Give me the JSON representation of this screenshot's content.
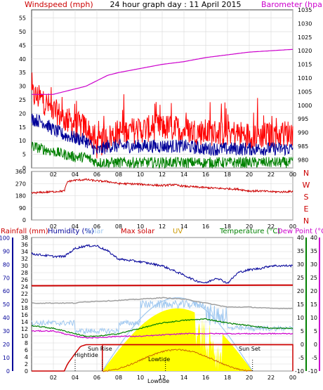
{
  "titles": {
    "top_left": "Windspeed (mph)",
    "top_center": "24 hour graph day : 11 April 2015",
    "top_right": "Barometer (hpa)",
    "bottom_rainfall": "Rainfall (mm)",
    "bottom_humidity": "Humidity (%)",
    "bottom_solar": "Solar",
    "bottom_maxsolar": "Max solar",
    "bottom_uv": "UV",
    "bottom_temperature": "Temperature (°C)",
    "bottom_dewpoint": "Dew Point (°C)"
  },
  "annotations": {
    "hightide": "Hightide",
    "lowtide": "Lowtide",
    "lowtide2": "Lowtide",
    "sunrise": "Sun Rise",
    "sunset": "Sun Set"
  },
  "compass_labels": [
    "N",
    "W",
    "S",
    "E",
    "N"
  ],
  "colors": {
    "wind_gust": "#ff0000",
    "wind_avg": "#000099",
    "wind_low": "#008000",
    "barometer": "#cc00cc",
    "direction": "#cc0000",
    "humidity": "#000099",
    "max_solar": "#cc0000",
    "uv": "#cc6600",
    "solar_fill": "#ffff00",
    "temperature": "#008000",
    "dewpoint": "#cc00cc",
    "sky_light": "#a0c8f0",
    "gray": "#a0a0a0",
    "rain": "#cc0000",
    "grid": "#d8d8d8"
  },
  "chart_data": [
    {
      "type": "line",
      "title": "24 hour graph day : 11 April 2015",
      "ylabel_left": "Windspeed (mph)",
      "ylabel_right": "Barometer (hpa)",
      "x_ticks": [
        "02",
        "04",
        "06",
        "08",
        "10",
        "12",
        "14",
        "16",
        "18",
        "20",
        "22",
        "00"
      ],
      "y_left_ticks": [
        0,
        5,
        10,
        15,
        20,
        25,
        30,
        35,
        40,
        45,
        50,
        55
      ],
      "y_left_range": [
        0,
        58
      ],
      "y_right_ticks": [
        980,
        985,
        990,
        995,
        1000,
        1005,
        1010,
        1015,
        1020,
        1025,
        1030,
        1035
      ],
      "y_right_range": [
        977,
        1035
      ],
      "series": [
        {
          "name": "Windspeed (mph)",
          "axis": "left",
          "hours": [
            0,
            1,
            2,
            3,
            4,
            5,
            6,
            7,
            8,
            10,
            12,
            14,
            16,
            18,
            20,
            22,
            24
          ],
          "values": [
            27,
            25,
            21,
            18,
            16,
            15,
            8,
            11,
            13,
            14,
            15,
            14,
            13,
            13,
            12,
            12,
            13
          ]
        },
        {
          "name": "Windspeed (mph)",
          "axis": "left",
          "hours": [
            0,
            1,
            2,
            3,
            4,
            5,
            6,
            7,
            8,
            10,
            12,
            14,
            16,
            18,
            20,
            22,
            24
          ],
          "values": [
            18,
            17,
            14,
            12,
            11,
            10,
            6,
            8,
            8,
            8,
            8,
            8,
            7,
            7,
            7,
            7,
            7
          ]
        },
        {
          "name": "Windspeed (mph)",
          "axis": "left",
          "hours": [
            0,
            1,
            2,
            3,
            4,
            5,
            6,
            7,
            8,
            10,
            12,
            14,
            16,
            18,
            20,
            22,
            24
          ],
          "values": [
            8,
            7,
            6,
            5,
            4,
            4,
            2,
            2,
            2,
            2,
            2,
            2,
            2,
            2,
            2,
            2,
            2
          ]
        },
        {
          "name": "Barometer (hpa)",
          "axis": "right",
          "hours": [
            0,
            2,
            3,
            4,
            5,
            6,
            7,
            8,
            10,
            12,
            14,
            16,
            18,
            20,
            22,
            24
          ],
          "values": [
            1004,
            1004,
            1005,
            1006,
            1007,
            1009,
            1011,
            1012,
            1013.5,
            1015,
            1016,
            1017.5,
            1018.5,
            1019.5,
            1020,
            1020.5
          ]
        }
      ]
    },
    {
      "type": "line",
      "y_ticks": [
        0,
        90,
        180,
        270,
        360
      ],
      "y_range": [
        0,
        360
      ],
      "x_ticks": [
        "02",
        "04",
        "06",
        "08",
        "10",
        "12",
        "14",
        "16",
        "18",
        "20",
        "22",
        "00"
      ],
      "series": [
        {
          "name": "direction",
          "hours": [
            0,
            1,
            2,
            3,
            3.3,
            4,
            5,
            6,
            7,
            8,
            9,
            10,
            11,
            12,
            13,
            14,
            15,
            16,
            17,
            18,
            19,
            20,
            21,
            22,
            23,
            24
          ],
          "values": [
            200,
            205,
            210,
            215,
            285,
            295,
            300,
            290,
            285,
            270,
            268,
            265,
            260,
            255,
            262,
            250,
            245,
            240,
            235,
            232,
            228,
            215,
            215,
            210,
            208,
            212
          ]
        }
      ]
    },
    {
      "type": "line",
      "y_rain_ticks": [
        0,
        2,
        4,
        6,
        8,
        10,
        12,
        14,
        16,
        18,
        20,
        22,
        24,
        26,
        28,
        30,
        32,
        34,
        36,
        38
      ],
      "y_hum_ticks": [
        0,
        10,
        20,
        30,
        40,
        50,
        60,
        70,
        80,
        90,
        100
      ],
      "y_temp_ticks": [
        -10,
        -5,
        0,
        5,
        10,
        15,
        20,
        25,
        30,
        35,
        40
      ],
      "x_ticks": [
        "02",
        "04",
        "06",
        "08",
        "10",
        "12",
        "14",
        "16",
        "18",
        "20",
        "22",
        "00"
      ],
      "series": [
        {
          "name": "Humidity (%)",
          "hours": [
            0,
            2,
            3,
            4,
            5,
            6,
            7,
            8,
            10,
            12,
            14,
            15,
            16,
            17,
            18,
            19,
            20,
            21,
            22,
            24
          ],
          "values": [
            88,
            86,
            86,
            92,
            94,
            94,
            90,
            84,
            82,
            79,
            72,
            68,
            66,
            70,
            66,
            74,
            76,
            77,
            79,
            79
          ]
        },
        {
          "name": "Rainfall (mm)",
          "hours": [
            0,
            3,
            3.3,
            4,
            4.5,
            5,
            24
          ],
          "values": [
            0,
            0,
            2,
            5,
            7,
            7.5,
            7.5
          ]
        },
        {
          "name": "Temperature (°C)",
          "hours": [
            0,
            2,
            4,
            5,
            6,
            8,
            10,
            12,
            14,
            16,
            18,
            20,
            22,
            24
          ],
          "values": [
            7,
            6,
            4,
            3,
            3,
            4,
            6,
            8,
            9,
            9.5,
            8,
            7,
            6,
            6
          ]
        },
        {
          "name": "Dew Point (°C)",
          "hours": [
            0,
            2,
            4,
            5,
            6,
            8,
            10,
            12,
            14,
            16,
            18,
            20,
            22,
            24
          ],
          "values": [
            5,
            5,
            3,
            2.5,
            2.5,
            3,
            3,
            3.5,
            4,
            4,
            4,
            4,
            4,
            4
          ]
        }
      ]
    }
  ]
}
